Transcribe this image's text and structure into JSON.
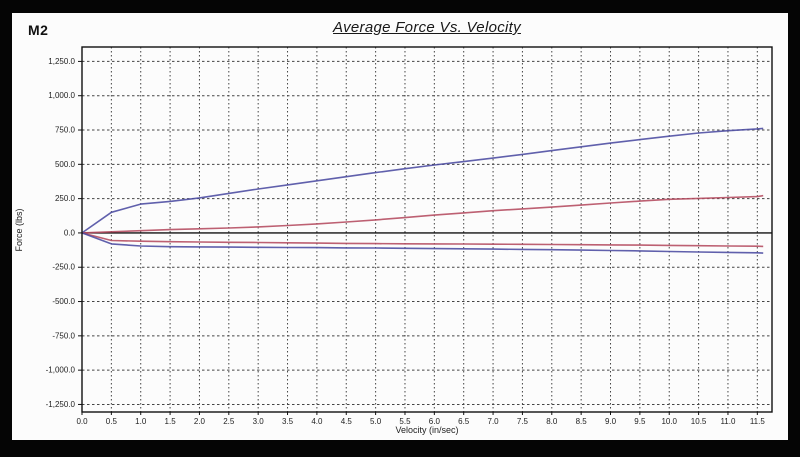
{
  "window": {
    "corner_label": "M2"
  },
  "chart": {
    "title": "Average Force Vs. Velocity",
    "xlabel": "Velocity (in/sec)",
    "ylabel": "Force (lbs)"
  },
  "chart_data": {
    "type": "line",
    "title": "Average Force Vs. Velocity",
    "xlabel": "Velocity (in/sec)",
    "ylabel": "Force (lbs)",
    "xlim": [
      0,
      11.75
    ],
    "ylim": [
      -1305,
      1355
    ],
    "grid": true,
    "legend": "none",
    "x_ticks": [
      0,
      0.5,
      1,
      1.5,
      2,
      2.5,
      3,
      3.5,
      4,
      4.5,
      5,
      5.5,
      6,
      6.5,
      7,
      7.5,
      8,
      8.5,
      9,
      9.5,
      10,
      10.5,
      11,
      11.5
    ],
    "x_tick_labels": [
      "0.0",
      "0.5",
      "1.0",
      "1.5",
      "2.0",
      "2.5",
      "3.0",
      "3.5",
      "4.0",
      "4.5",
      "5.0",
      "5.5",
      "6.0",
      "6.5",
      "7.0",
      "7.5",
      "8.0",
      "8.5",
      "9.0",
      "9.5",
      "10.0",
      "10.5",
      "11.0",
      "11.5"
    ],
    "y_ticks": [
      1250,
      1000,
      750,
      500,
      250,
      0,
      -250,
      -500,
      -750,
      -1000,
      -1250
    ],
    "y_tick_labels": [
      "1,250.0",
      "1,000.0",
      "750.0",
      "500.0",
      "250.0",
      "0.0",
      "-250.0",
      "-500.0",
      "-750.0",
      "-1,000.0",
      "-1,250.0"
    ],
    "x": [
      0,
      0.5,
      1,
      1.5,
      2,
      2.5,
      3,
      3.5,
      4,
      4.5,
      5,
      5.5,
      6,
      6.5,
      7,
      7.5,
      8,
      8.5,
      9,
      9.5,
      10,
      10.5,
      11,
      11.5,
      11.6
    ],
    "series": [
      {
        "name": "blue-upper-rebound",
        "color": "#4a4aa0",
        "values": [
          0,
          150,
          210,
          230,
          255,
          288,
          320,
          350,
          380,
          410,
          440,
          468,
          495,
          520,
          545,
          572,
          600,
          628,
          655,
          680,
          705,
          728,
          745,
          758,
          762
        ]
      },
      {
        "name": "red-upper-rebound",
        "color": "#b44a5e",
        "values": [
          0,
          8,
          16,
          24,
          30,
          36,
          44,
          54,
          66,
          80,
          95,
          112,
          130,
          146,
          162,
          175,
          188,
          203,
          218,
          232,
          245,
          252,
          258,
          265,
          272
        ]
      },
      {
        "name": "red-lower-compression",
        "color": "#b44a5e",
        "values": [
          0,
          -55,
          -60,
          -64,
          -66,
          -68,
          -70,
          -72,
          -74,
          -76,
          -78,
          -79,
          -80,
          -81,
          -82,
          -83,
          -84,
          -86,
          -87,
          -89,
          -91,
          -93,
          -95,
          -97,
          -98
        ]
      },
      {
        "name": "blue-lower-compression",
        "color": "#4a4aa0",
        "values": [
          0,
          -80,
          -95,
          -100,
          -102,
          -103,
          -105,
          -106,
          -107,
          -109,
          -110,
          -112,
          -114,
          -116,
          -118,
          -120,
          -122,
          -125,
          -128,
          -131,
          -135,
          -139,
          -142,
          -145,
          -147
        ]
      }
    ],
    "colors": {
      "blue": "#4a4aa0",
      "red": "#b44a5e",
      "grid": "#444444",
      "axis": "#111111"
    }
  }
}
